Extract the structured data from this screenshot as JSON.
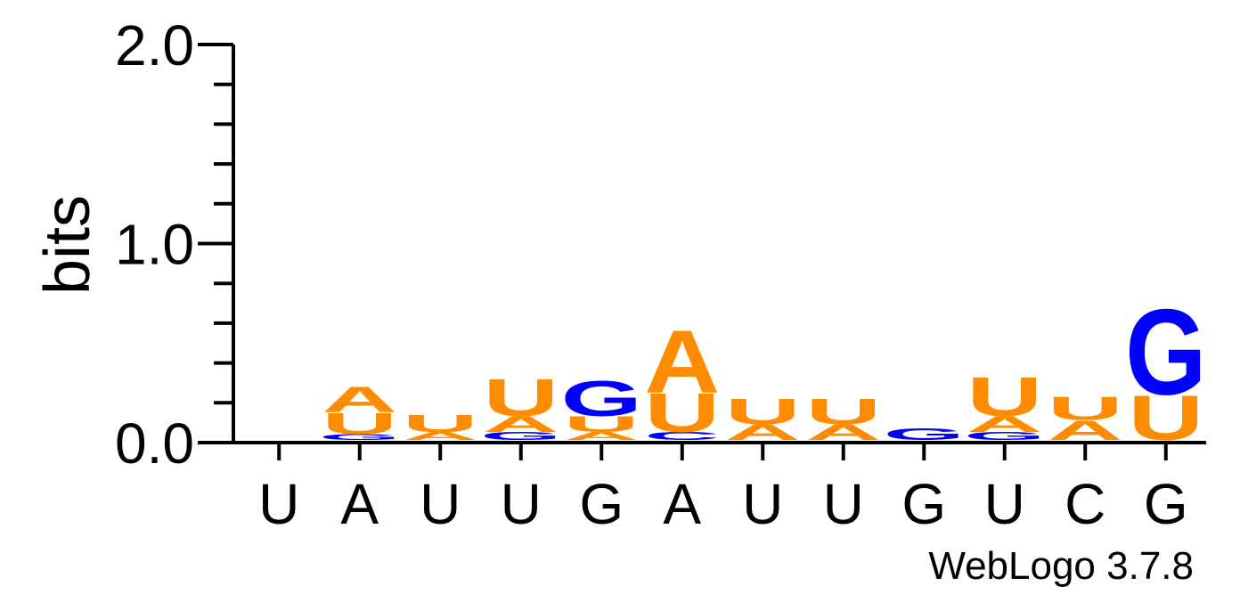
{
  "chart_data": {
    "type": "sequence-logo",
    "ylabel": "bits",
    "ylim": [
      0,
      2.0
    ],
    "yticks": [
      "0.0",
      "1.0",
      "2.0"
    ],
    "positions": [
      "U",
      "A",
      "U",
      "U",
      "G",
      "A",
      "U",
      "U",
      "G",
      "U",
      "C",
      "G"
    ],
    "colors": {
      "A": "#ff8c00",
      "U": "#ff8c00",
      "G": "#0000ff",
      "C": "#0000ff"
    },
    "stacks": [
      [],
      [
        {
          "l": "G",
          "h": 0.03
        },
        {
          "l": "U",
          "h": 0.11
        },
        {
          "l": "A",
          "h": 0.13
        }
      ],
      [
        {
          "l": "A",
          "h": 0.04
        },
        {
          "l": "U",
          "h": 0.09
        }
      ],
      [
        {
          "l": "G",
          "h": 0.04
        },
        {
          "l": "A",
          "h": 0.08
        },
        {
          "l": "U",
          "h": 0.19
        }
      ],
      [
        {
          "l": "A",
          "h": 0.04
        },
        {
          "l": "U",
          "h": 0.08
        },
        {
          "l": "G",
          "h": 0.18
        }
      ],
      [
        {
          "l": "C",
          "h": 0.04
        },
        {
          "l": "U",
          "h": 0.2
        },
        {
          "l": "A",
          "h": 0.32
        }
      ],
      [
        {
          "l": "A",
          "h": 0.08
        },
        {
          "l": "U",
          "h": 0.13
        }
      ],
      [
        {
          "l": "A",
          "h": 0.08
        },
        {
          "l": "U",
          "h": 0.13
        }
      ],
      [
        {
          "l": "G",
          "h": 0.06
        }
      ],
      [
        {
          "l": "G",
          "h": 0.04
        },
        {
          "l": "A",
          "h": 0.08
        },
        {
          "l": "U",
          "h": 0.2
        }
      ],
      [
        {
          "l": "A",
          "h": 0.1
        },
        {
          "l": "U",
          "h": 0.12
        }
      ],
      [
        {
          "l": "U",
          "h": 0.23
        },
        {
          "l": "G",
          "h": 0.44
        }
      ]
    ]
  },
  "credit": "WebLogo 3.7.8"
}
